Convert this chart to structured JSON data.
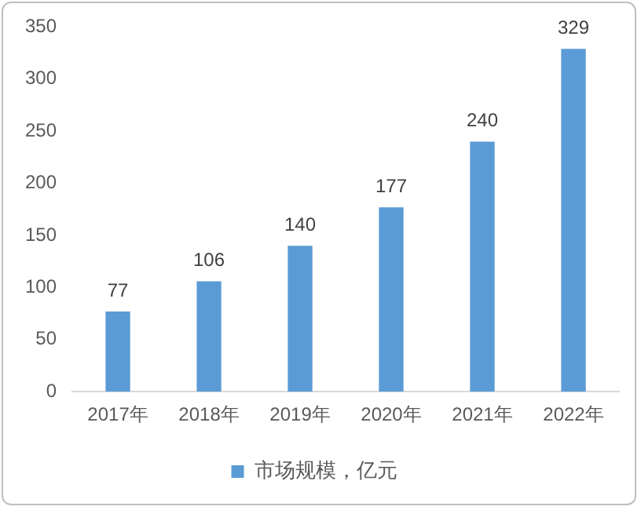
{
  "chart_data": {
    "type": "bar",
    "categories": [
      "2017年",
      "2018年",
      "2019年",
      "2020年",
      "2021年",
      "2022年"
    ],
    "series": [
      {
        "name": "市场规模，亿元",
        "color": "#5b9bd5",
        "values": [
          77,
          106,
          140,
          177,
          240,
          329
        ]
      }
    ],
    "ylim": [
      0,
      350
    ],
    "yticks": [
      0,
      50,
      100,
      150,
      200,
      250,
      300,
      350
    ],
    "grid": false,
    "data_labels": true,
    "legend": "bottom"
  }
}
